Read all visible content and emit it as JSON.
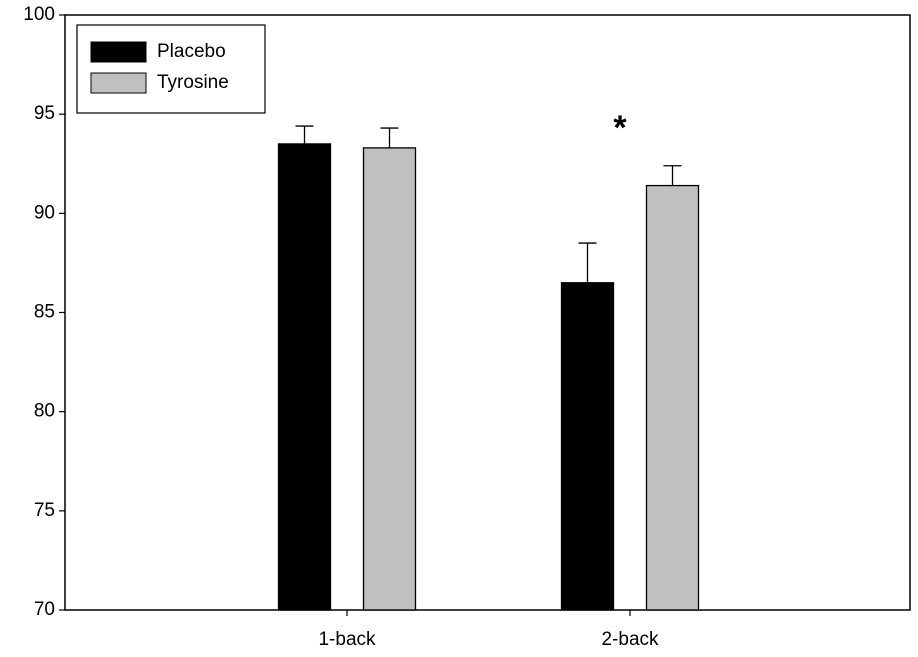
{
  "chart_data": {
    "type": "bar",
    "categories": [
      "1-back",
      "2-back"
    ],
    "series": [
      {
        "name": "Placebo",
        "color": "#000000",
        "values": [
          93.5,
          86.5
        ],
        "errors": [
          0.9,
          2.0
        ]
      },
      {
        "name": "Tyrosine",
        "color": "#c0c0c0",
        "values": [
          93.3,
          91.4
        ],
        "errors": [
          1.0,
          1.0
        ]
      }
    ],
    "ylim": [
      70,
      100
    ],
    "yticks": [
      70,
      75,
      80,
      85,
      90,
      95,
      100
    ],
    "annotation": "*",
    "legend": "upper left"
  }
}
